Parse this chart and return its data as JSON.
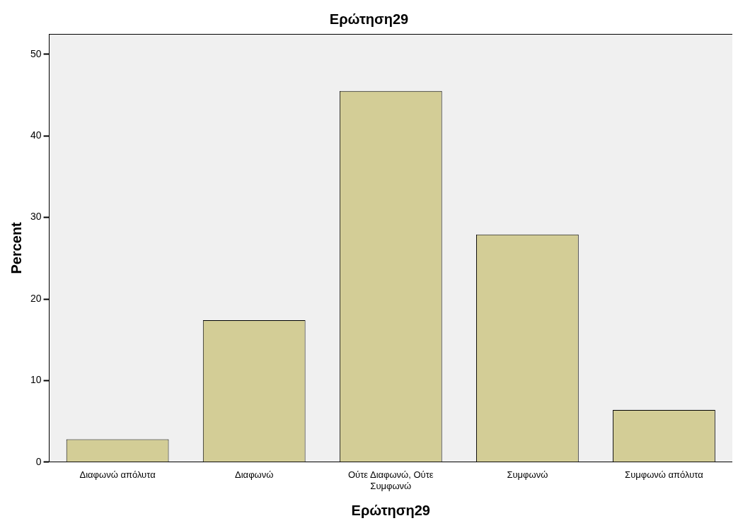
{
  "chart_data": {
    "type": "bar",
    "title": "Ερώτηση29",
    "xlabel": "Ερώτηση29",
    "ylabel": "Percent",
    "categories": [
      "Διαφωνώ απόλυτα",
      "Διαφωνώ",
      "Ούτε Διαφωνώ, Ούτε Συμφωνώ",
      "Συμφωνώ",
      "Συμφωνώ απόλυτα"
    ],
    "values": [
      2.8,
      17.4,
      45.5,
      27.9,
      6.4
    ],
    "color": "#d3cd96",
    "ylim": [
      0,
      52.5
    ],
    "yticks": [
      0,
      10,
      20,
      30,
      40,
      50
    ],
    "grid": false,
    "legend": false
  }
}
